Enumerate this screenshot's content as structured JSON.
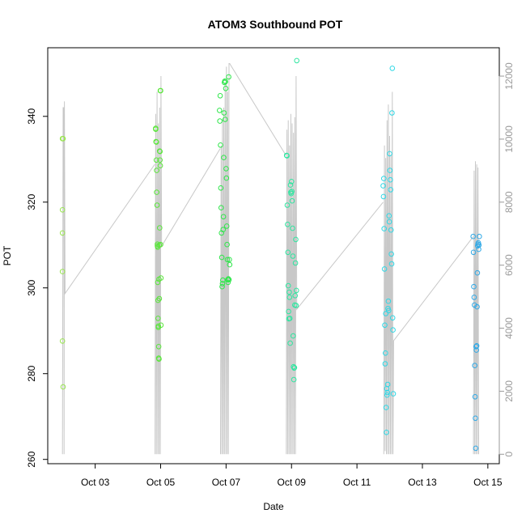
{
  "chart_data": {
    "type": "scatter",
    "title": "ATOM3 Southbound POT",
    "xlabel": "Date",
    "ylabel": "POT",
    "x_ticks": [
      {
        "label": "Oct 03",
        "value": 3
      },
      {
        "label": "Oct 05",
        "value": 5
      },
      {
        "label": "Oct 07",
        "value": 7
      },
      {
        "label": "Oct 09",
        "value": 9
      },
      {
        "label": "Oct 11",
        "value": 11
      },
      {
        "label": "Oct 13",
        "value": 13
      },
      {
        "label": "Oct 15",
        "value": 15
      }
    ],
    "xlim": [
      1.55,
      15.35
    ],
    "ylim": [
      259,
      356
    ],
    "y_ticks": [
      260,
      280,
      300,
      320,
      340
    ],
    "y2lim": [
      -300,
      12900
    ],
    "y2_ticks": [
      0,
      2000,
      4000,
      6000,
      8000,
      10000,
      12000
    ],
    "grid": false,
    "legend": "none",
    "point_colors": {
      "day1": "#99e650",
      "day2": "#59e63a",
      "day3": "#2ee64a",
      "day4": "#2ee6a0",
      "day5": "#2ed8e6",
      "day6": "#2ea8e6"
    },
    "line_color": "#c8c8c8",
    "series": [
      {
        "x": [
          2.0,
          2.0,
          2.0,
          2.0,
          2.0,
          2.0,
          2.02,
          2.02
        ],
        "y": [
          334.8,
          334.8,
          318.2,
          312.8,
          303.8,
          287.6,
          276.9,
          334.8
        ],
        "color_key": "day1"
      },
      {
        "x": [
          4.85,
          4.85,
          4.86,
          4.87,
          4.87,
          4.88,
          4.88,
          4.89,
          4.9,
          4.9,
          4.91,
          4.91,
          4.92,
          4.92,
          4.93,
          4.93,
          4.94,
          4.94,
          4.95,
          4.95,
          4.96,
          4.96,
          4.97,
          4.97,
          4.98,
          4.98,
          4.99,
          4.99,
          5.0,
          5.0,
          5.01,
          5.01
        ],
        "y": [
          337.2,
          337.0,
          334.1,
          334.0,
          329.8,
          327.4,
          322.3,
          319.3,
          310.2,
          309.8,
          309.5,
          301.3,
          297.1,
          292.9,
          291.1,
          290.8,
          286.3,
          283.6,
          283.4,
          302.0,
          297.5,
          310.0,
          314.0,
          331.9,
          331.8,
          329.8,
          328.5,
          346.0,
          346.0,
          310.1,
          302.3,
          291.3
        ],
        "color_key": "day2"
      },
      {
        "x": [
          6.8,
          6.81,
          6.82,
          6.83,
          6.84,
          6.85,
          6.86,
          6.87,
          6.88,
          6.89,
          6.9,
          6.91,
          6.92,
          6.93,
          6.94,
          6.95,
          6.96,
          6.97,
          6.98,
          6.99,
          7.0,
          7.01,
          7.02,
          7.03,
          7.04,
          7.05,
          7.06,
          7.07,
          7.08,
          7.09,
          7.1,
          7.11
        ],
        "y": [
          341.4,
          338.9,
          344.8,
          333.3,
          323.3,
          318.7,
          312.8,
          307.1,
          300.3,
          301.0,
          301.8,
          313.6,
          316.6,
          330.4,
          340.8,
          347.9,
          348.2,
          339.3,
          348.1,
          346.5,
          327.8,
          325.6,
          314.4,
          310.1,
          306.6,
          301.9,
          301.3,
          302.1,
          349.2,
          301.9,
          306.6,
          305.4
        ],
        "color_key": "day3"
      },
      {
        "x": [
          8.85,
          8.86,
          8.87,
          8.88,
          8.89,
          8.9,
          8.91,
          8.92,
          8.93,
          8.94,
          8.95,
          8.96,
          8.97,
          8.98,
          8.99,
          9.0,
          9.01,
          9.02,
          9.03,
          9.04,
          9.05,
          9.06,
          9.07,
          9.08,
          9.09,
          9.1,
          9.11,
          9.12,
          9.13,
          9.14,
          9.15,
          9.16
        ],
        "y": [
          330.9,
          330.8,
          319.3,
          314.8,
          308.3,
          300.5,
          294.5,
          292.8,
          299.0,
          297.8,
          292.9,
          287.1,
          324.0,
          322.3,
          322.0,
          324.8,
          322.5,
          320.3,
          313.9,
          307.4,
          288.8,
          281.6,
          278.6,
          281.3,
          281.4,
          296.0,
          298.2,
          305.8,
          311.3,
          295.9,
          299.4,
          353.0
        ],
        "color_key": "day4"
      },
      {
        "x": [
          11.8,
          11.81,
          11.82,
          11.83,
          11.84,
          11.85,
          11.86,
          11.87,
          11.88,
          11.89,
          11.9,
          11.91,
          11.92,
          11.93,
          11.94,
          11.95,
          11.96,
          11.97,
          11.98,
          11.99,
          12.0,
          12.01,
          12.02,
          12.03,
          12.04,
          12.05,
          12.06,
          12.07,
          12.08,
          12.09,
          12.1,
          12.11
        ],
        "y": [
          323.8,
          321.3,
          325.5,
          313.8,
          304.4,
          291.3,
          282.3,
          284.8,
          294.0,
          272.1,
          266.3,
          276.5,
          275.0,
          275.6,
          277.5,
          295.2,
          296.9,
          294.7,
          316.8,
          315.4,
          331.3,
          327.4,
          325.2,
          322.9,
          313.5,
          307.9,
          305.6,
          340.8,
          351.2,
          293.0,
          290.2,
          275.3
        ],
        "color_key": "day5"
      },
      {
        "x": [
          14.55,
          14.56,
          14.57,
          14.58,
          14.59,
          14.6,
          14.61,
          14.62,
          14.63,
          14.64,
          14.65,
          14.66,
          14.67,
          14.68,
          14.69,
          14.7,
          14.71,
          14.72,
          14.73,
          14.74
        ],
        "y": [
          312.0,
          308.3,
          300.3,
          297.8,
          296.0,
          281.9,
          274.6,
          269.6,
          262.6,
          286.3,
          285.5,
          286.5,
          295.6,
          303.5,
          309.8,
          310.2,
          310.5,
          309.0,
          310.0,
          312.0
        ],
        "color_key": "day6"
      }
    ],
    "lines": [
      {
        "x": [
          2.0,
          2.02,
          2.04,
          2.05,
          2.06,
          2.08,
          4.82
        ],
        "y2": [
          0,
          11000,
          11000,
          0,
          11200,
          5100,
          9200
        ]
      },
      {
        "x": [
          4.83,
          4.85,
          4.87,
          4.89,
          4.91,
          4.93,
          4.95,
          4.97,
          4.99,
          5.01,
          5.03,
          6.82
        ],
        "y2": [
          0,
          10800,
          0,
          11500,
          0,
          10500,
          0,
          11000,
          0,
          12000,
          6600,
          9700
        ]
      },
      {
        "x": [
          6.83,
          6.85,
          6.87,
          6.89,
          6.91,
          6.93,
          6.95,
          6.97,
          6.99,
          7.01,
          7.03,
          7.05,
          7.07,
          7.09,
          7.11,
          8.82
        ],
        "y2": [
          0,
          9800,
          0,
          10600,
          0,
          11000,
          0,
          11800,
          0,
          12300,
          0,
          11500,
          0,
          12400,
          12400,
          9500
        ]
      },
      {
        "x": [
          8.84,
          8.86,
          8.88,
          8.9,
          8.92,
          8.94,
          8.96,
          8.98,
          9.0,
          9.02,
          9.04,
          9.06,
          9.08,
          9.1,
          9.12,
          9.14,
          9.16,
          11.8
        ],
        "y2": [
          0,
          10300,
          0,
          10600,
          0,
          9800,
          0,
          10800,
          0,
          10500,
          0,
          10200,
          0,
          10700,
          0,
          12000,
          4600,
          8000
        ]
      },
      {
        "x": [
          11.82,
          11.84,
          11.86,
          11.88,
          11.9,
          11.92,
          11.94,
          11.96,
          11.98,
          12.0,
          12.02,
          12.04,
          12.06,
          12.08,
          12.1,
          12.12,
          14.55
        ],
        "y2": [
          0,
          9800,
          100,
          9400,
          0,
          10600,
          0,
          11100,
          0,
          10100,
          0,
          9500,
          0,
          11500,
          0,
          3600,
          6900
        ]
      },
      {
        "x": [
          14.56,
          14.58,
          14.6,
          14.62,
          14.64,
          14.66,
          14.68,
          14.7,
          14.72
        ],
        "y2": [
          0,
          9000,
          0,
          9300,
          0,
          9200,
          0,
          9100,
          0
        ]
      }
    ]
  }
}
